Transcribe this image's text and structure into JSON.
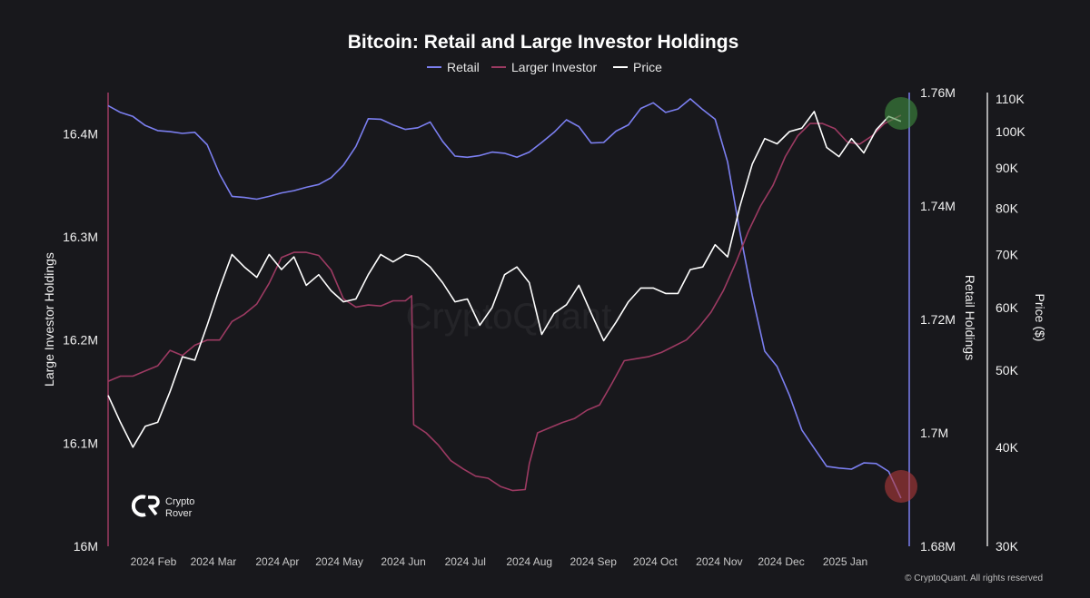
{
  "chart_data": {
    "type": "line",
    "title": "Bitcoin: Retail and Large Investor Holdings",
    "legend_position": "top-center",
    "grid": false,
    "watermark": "CryptoQuant",
    "brand": {
      "name_line1": "Crypto",
      "name_line2": "Rover"
    },
    "copyright": "© CryptoQuant. All rights reserved",
    "colors": {
      "background": "#18181c",
      "retail": "#7b7ff0",
      "large_investor": "#9c3a62",
      "price": "#ffffff",
      "highlight_high": "#3f8f3f",
      "highlight_low": "#b23a3a"
    },
    "x_axis": {
      "range": [
        "2024-01-10",
        "2025-02-01"
      ],
      "tick_labels": [
        "2024 Feb",
        "2024 Mar",
        "2024 Apr",
        "2024 May",
        "2024 Jun",
        "2024 Jul",
        "2024 Aug",
        "2024 Sep",
        "2024 Oct",
        "2024 Nov",
        "2024 Dec",
        "2025 Jan"
      ],
      "tick_dates": [
        "2024-02-01",
        "2024-03-01",
        "2024-04-01",
        "2024-05-01",
        "2024-06-01",
        "2024-07-01",
        "2024-08-01",
        "2024-09-01",
        "2024-10-01",
        "2024-11-01",
        "2024-12-01",
        "2025-01-01"
      ]
    },
    "y_left": {
      "label": "Large Investor Holdings",
      "range": [
        16000000,
        16440000
      ],
      "ticks": [
        16000000,
        16100000,
        16200000,
        16300000,
        16400000
      ],
      "tick_labels": [
        "16M",
        "16.1M",
        "16.2M",
        "16.3M",
        "16.4M"
      ]
    },
    "y_right_retail": {
      "label": "Retail Holdings",
      "range": [
        1680000,
        1760000
      ],
      "ticks": [
        1680000,
        1700000,
        1720000,
        1740000,
        1760000
      ],
      "tick_labels": [
        "1.68M",
        "1.7M",
        "1.72M",
        "1.74M",
        "1.76M"
      ]
    },
    "y_right_price": {
      "label": "Price ($)",
      "scale": "log",
      "range": [
        30000,
        112000
      ],
      "ticks": [
        30000,
        40000,
        50000,
        60000,
        70000,
        80000,
        90000,
        100000,
        110000
      ],
      "tick_labels": [
        "30K",
        "40K",
        "50K",
        "60K",
        "70K",
        "80K",
        "90K",
        "100K",
        "110K"
      ]
    },
    "series": [
      {
        "name": "Retail",
        "axis": "y_right_retail",
        "x": [
          "2024-01-10",
          "2024-01-16",
          "2024-01-22",
          "2024-01-28",
          "2024-02-03",
          "2024-02-09",
          "2024-02-15",
          "2024-02-21",
          "2024-02-27",
          "2024-03-04",
          "2024-03-10",
          "2024-03-16",
          "2024-03-22",
          "2024-03-28",
          "2024-04-03",
          "2024-04-09",
          "2024-04-15",
          "2024-04-21",
          "2024-04-27",
          "2024-05-03",
          "2024-05-09",
          "2024-05-15",
          "2024-05-21",
          "2024-05-27",
          "2024-06-02",
          "2024-06-08",
          "2024-06-14",
          "2024-06-20",
          "2024-06-26",
          "2024-07-02",
          "2024-07-08",
          "2024-07-14",
          "2024-07-20",
          "2024-07-26",
          "2024-08-01",
          "2024-08-07",
          "2024-08-13",
          "2024-08-19",
          "2024-08-25",
          "2024-08-31",
          "2024-09-06",
          "2024-09-12",
          "2024-09-18",
          "2024-09-24",
          "2024-09-30",
          "2024-10-06",
          "2024-10-12",
          "2024-10-18",
          "2024-10-24",
          "2024-10-30",
          "2024-11-05",
          "2024-11-11",
          "2024-11-17",
          "2024-11-23",
          "2024-11-29",
          "2024-12-05",
          "2024-12-11",
          "2024-12-17",
          "2024-12-23",
          "2024-12-29",
          "2025-01-04",
          "2025-01-10",
          "2025-01-16",
          "2025-01-22",
          "2025-01-28"
        ],
        "values": [
          1757700,
          1756500,
          1755800,
          1754200,
          1753300,
          1753100,
          1752800,
          1753000,
          1750800,
          1745600,
          1741700,
          1741500,
          1741200,
          1741700,
          1742300,
          1742700,
          1743300,
          1743800,
          1745000,
          1747200,
          1750500,
          1755400,
          1755300,
          1754300,
          1753500,
          1753800,
          1754800,
          1751400,
          1748800,
          1748600,
          1748900,
          1749500,
          1749300,
          1748600,
          1749500,
          1751200,
          1753000,
          1755200,
          1754000,
          1751100,
          1751200,
          1753200,
          1754300,
          1757200,
          1758200,
          1756500,
          1757100,
          1758900,
          1757000,
          1755300,
          1747800,
          1735400,
          1724200,
          1714400,
          1711700,
          1706600,
          1700500,
          1697300,
          1694100,
          1693800,
          1693600,
          1694700,
          1694600,
          1693200,
          1688500
        ]
      },
      {
        "name": "Larger Investor",
        "axis": "y_left",
        "x": [
          "2024-01-10",
          "2024-01-16",
          "2024-01-22",
          "2024-01-28",
          "2024-02-03",
          "2024-02-09",
          "2024-02-15",
          "2024-02-21",
          "2024-02-27",
          "2024-03-04",
          "2024-03-10",
          "2024-03-16",
          "2024-03-22",
          "2024-03-28",
          "2024-04-03",
          "2024-04-09",
          "2024-04-15",
          "2024-04-21",
          "2024-04-27",
          "2024-05-03",
          "2024-05-09",
          "2024-05-15",
          "2024-05-21",
          "2024-05-27",
          "2024-06-02",
          "2024-06-05",
          "2024-06-06",
          "2024-06-12",
          "2024-06-18",
          "2024-06-24",
          "2024-06-30",
          "2024-07-06",
          "2024-07-12",
          "2024-07-18",
          "2024-07-24",
          "2024-07-30",
          "2024-08-01",
          "2024-08-05",
          "2024-08-11",
          "2024-08-17",
          "2024-08-23",
          "2024-08-29",
          "2024-09-04",
          "2024-09-10",
          "2024-09-16",
          "2024-09-22",
          "2024-09-28",
          "2024-10-04",
          "2024-10-10",
          "2024-10-16",
          "2024-10-22",
          "2024-10-28",
          "2024-11-03",
          "2024-11-09",
          "2024-11-15",
          "2024-11-21",
          "2024-11-27",
          "2024-12-03",
          "2024-12-09",
          "2024-12-15",
          "2024-12-21",
          "2024-12-27",
          "2025-01-02",
          "2025-01-08",
          "2025-01-14",
          "2025-01-20",
          "2025-01-28"
        ],
        "values": [
          16160000,
          16165000,
          16165000,
          16170000,
          16175000,
          16190000,
          16185000,
          16195000,
          16200000,
          16200000,
          16218000,
          16225000,
          16235000,
          16255000,
          16280000,
          16285000,
          16285000,
          16282000,
          16268000,
          16240000,
          16232000,
          16234000,
          16233000,
          16238000,
          16238000,
          16243000,
          16118000,
          16110000,
          16098000,
          16083000,
          16075000,
          16068000,
          16066000,
          16058000,
          16054000,
          16055000,
          16080000,
          16110000,
          16115000,
          16120000,
          16124000,
          16132000,
          16137000,
          16158000,
          16180000,
          16182000,
          16184000,
          16188000,
          16194000,
          16200000,
          16212000,
          16227000,
          16248000,
          16275000,
          16305000,
          16330000,
          16350000,
          16378000,
          16398000,
          16410000,
          16410000,
          16405000,
          16392000,
          16390000,
          16398000,
          16410000,
          16418000
        ]
      },
      {
        "name": "Price",
        "axis": "y_right_price",
        "x": [
          "2024-01-10",
          "2024-01-16",
          "2024-01-22",
          "2024-01-28",
          "2024-02-03",
          "2024-02-09",
          "2024-02-15",
          "2024-02-21",
          "2024-02-27",
          "2024-03-04",
          "2024-03-10",
          "2024-03-16",
          "2024-03-22",
          "2024-03-28",
          "2024-04-03",
          "2024-04-09",
          "2024-04-15",
          "2024-04-21",
          "2024-04-27",
          "2024-05-03",
          "2024-05-09",
          "2024-05-15",
          "2024-05-21",
          "2024-05-27",
          "2024-06-02",
          "2024-06-08",
          "2024-06-14",
          "2024-06-20",
          "2024-06-26",
          "2024-07-02",
          "2024-07-08",
          "2024-07-14",
          "2024-07-20",
          "2024-07-26",
          "2024-08-01",
          "2024-08-07",
          "2024-08-13",
          "2024-08-19",
          "2024-08-25",
          "2024-08-31",
          "2024-09-06",
          "2024-09-12",
          "2024-09-18",
          "2024-09-24",
          "2024-09-30",
          "2024-10-06",
          "2024-10-12",
          "2024-10-18",
          "2024-10-24",
          "2024-10-30",
          "2024-11-05",
          "2024-11-11",
          "2024-11-17",
          "2024-11-23",
          "2024-11-29",
          "2024-12-05",
          "2024-12-11",
          "2024-12-17",
          "2024-12-23",
          "2024-12-29",
          "2025-01-04",
          "2025-01-10",
          "2025-01-16",
          "2025-01-22",
          "2025-01-28"
        ],
        "values": [
          46500,
          43000,
          40000,
          42500,
          43000,
          47000,
          52000,
          51500,
          57000,
          63500,
          70000,
          67500,
          65500,
          70000,
          67000,
          69500,
          64000,
          66000,
          63000,
          61000,
          61500,
          66000,
          70000,
          68500,
          70000,
          69500,
          67500,
          64500,
          61000,
          61500,
          57000,
          60000,
          66000,
          67500,
          64500,
          55500,
          59000,
          60500,
          64000,
          59000,
          54500,
          57500,
          61000,
          63500,
          63500,
          62500,
          62500,
          67000,
          67500,
          72000,
          69500,
          80500,
          91000,
          98000,
          96500,
          100000,
          101000,
          106000,
          95500,
          93000,
          98000,
          94000,
          100500,
          104500,
          103000
        ]
      }
    ],
    "annotations": [
      {
        "type": "circle",
        "near": "Price high",
        "x": "2025-01-28",
        "color": "green"
      },
      {
        "type": "circle",
        "near": "Retail low",
        "x": "2025-01-28",
        "color": "red"
      }
    ]
  }
}
